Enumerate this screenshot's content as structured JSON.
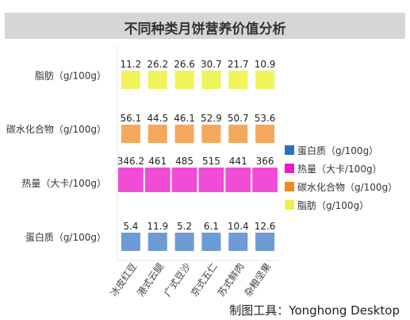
{
  "chart_data": {
    "type": "heatmap",
    "title": "不同种类月饼营养价值分析",
    "categories": [
      "冰皮红豆",
      "港式云腿",
      "广式豆沙",
      "京式五仁",
      "苏式鲜肉",
      "杂粮坚果"
    ],
    "series": [
      {
        "name": "脂肪（g/100g）",
        "label": "脂肪（g/100g）",
        "color": "#eef45a",
        "values": [
          11.2,
          26.2,
          26.6,
          30.7,
          21.7,
          10.9
        ]
      },
      {
        "name": "碳水化合物（g/100g）",
        "label": "碳水化合物（g/100g）",
        "color": "#f4a85c",
        "values": [
          56.1,
          44.5,
          46.1,
          52.9,
          50.7,
          53.6
        ]
      },
      {
        "name": "热量（大卡/100g）",
        "label": "热量（大卡/100g）",
        "color": "#f04cd6",
        "values": [
          346.2,
          461,
          485,
          515,
          441,
          366
        ]
      },
      {
        "name": "蛋白质（g/100g）",
        "label": "蛋白质（g/100g）",
        "color": "#6c9bd6",
        "values": [
          5.4,
          11.9,
          5.2,
          6.1,
          10.4,
          12.6
        ]
      }
    ],
    "legend": {
      "position": "right",
      "items": [
        {
          "label": "蛋白质（g/100g）",
          "color": "#2f6fbf"
        },
        {
          "label": "热量（大卡/100g）",
          "color": "#e81cc8"
        },
        {
          "label": "碳水化合物（g/100g）",
          "color": "#f08a1e"
        },
        {
          "label": "脂肪（g/100g）",
          "color": "#eef04a"
        }
      ]
    }
  },
  "footer": "制图工具：Yonghong Desktop"
}
